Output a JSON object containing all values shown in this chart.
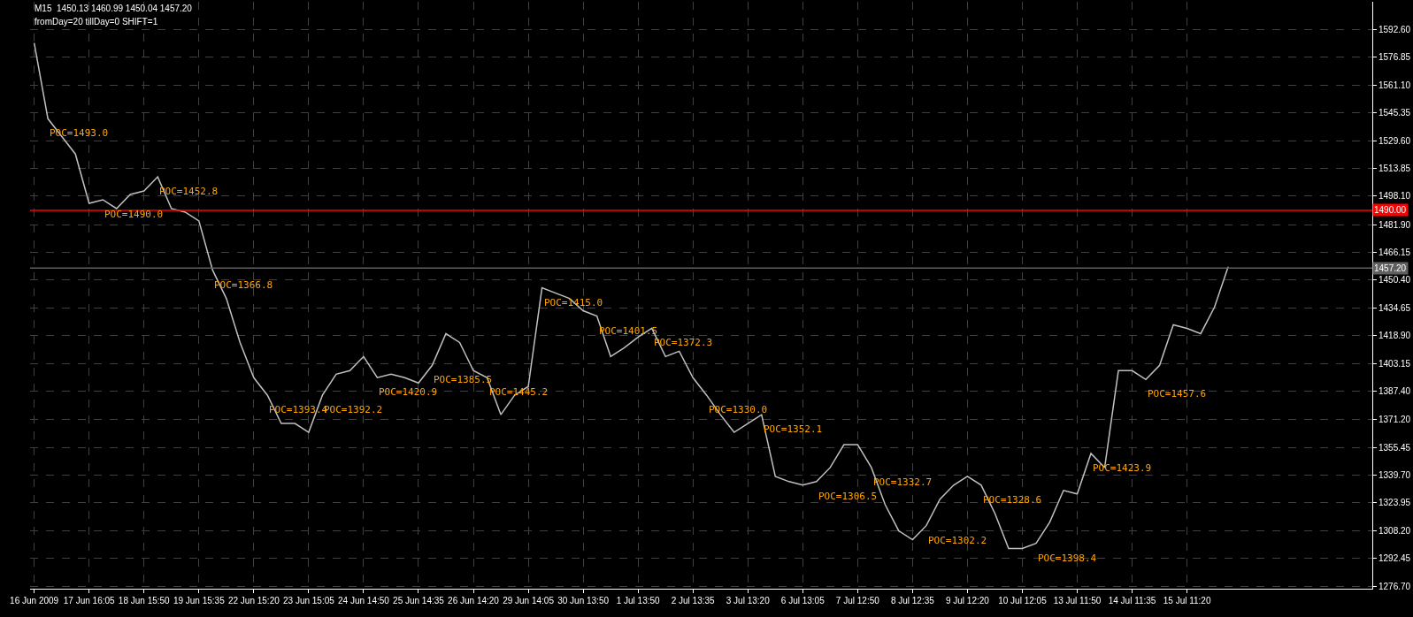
{
  "chart_data": {
    "type": "line",
    "title": "M15  1450.13 1460.99 1450.04 1457.20",
    "subtitle": "fromDay=20 tillDay=0 SHIFT=1",
    "categories": [
      "16 Jun 2009",
      null,
      null,
      null,
      "17 Jun 16:05",
      null,
      null,
      null,
      "18 Jun 15:50",
      null,
      null,
      null,
      "19 Jun 15:35",
      null,
      null,
      null,
      "22 Jun 15:20",
      null,
      null,
      null,
      "23 Jun 15:05",
      null,
      null,
      null,
      "24 Jun 14:50",
      null,
      null,
      null,
      "25 Jun 14:35",
      null,
      null,
      null,
      "26 Jun 14:20",
      null,
      null,
      null,
      "29 Jun 14:05",
      null,
      null,
      null,
      "30 Jun 13:50",
      null,
      null,
      null,
      "1 Jul 13:50",
      null,
      null,
      null,
      "2 Jul 13:35",
      null,
      null,
      null,
      "3 Jul 13:20",
      null,
      null,
      null,
      "6 Jul 13:05",
      null,
      null,
      null,
      "7 Jul 12:50",
      null,
      null,
      null,
      "8 Jul 12:35",
      null,
      null,
      null,
      "9 Jul 12:20",
      null,
      null,
      null,
      "10 Jul 12:05",
      null,
      null,
      null,
      "13 Jul 11:50",
      null,
      null,
      null,
      "14 Jul 11:35",
      null,
      null,
      null,
      "15 Jul 11:20",
      null,
      null,
      null,
      null,
      null,
      null,
      null,
      null,
      null,
      null,
      null,
      null,
      null
    ],
    "series": [
      {
        "color": "#c0c0c0",
        "values": [
          1585,
          1542,
          1532,
          1522,
          1494,
          1496,
          1491,
          1499,
          1501,
          1509,
          1491,
          1489,
          1484,
          1456,
          1440,
          1415,
          1395,
          1385,
          1369,
          1369,
          1364,
          1385,
          1397,
          1399,
          1407,
          1395,
          1397,
          1395,
          1392,
          1402,
          1420,
          1415,
          1399,
          1395,
          1374,
          1385,
          1390,
          1446,
          1443,
          1440,
          1433,
          1430,
          1407,
          1412,
          1418,
          1423,
          1407,
          1410,
          1395,
          1385,
          1374,
          1364,
          1369,
          1374,
          1339,
          1336,
          1334,
          1336,
          1344,
          1357,
          1357,
          1344,
          1323,
          1308,
          1303,
          1311,
          1326,
          1334,
          1339,
          1334,
          1318,
          1298,
          1298,
          1301,
          1313,
          1331,
          1329,
          1352,
          1344,
          1399,
          1399,
          1394,
          1402,
          1425,
          1423,
          1420,
          1435,
          1458,
          null,
          null,
          null,
          null,
          null,
          null,
          null,
          null,
          null,
          null
        ]
      }
    ],
    "ylim": [
      1275.2,
      1608.4
    ],
    "yticks": [
      {
        "value": 1276.7,
        "label": "1276.70"
      },
      {
        "value": 1292.45,
        "label": "1292.45"
      },
      {
        "value": 1308.2,
        "label": "1308.20"
      },
      {
        "value": 1323.95,
        "label": "1323.95"
      },
      {
        "value": 1339.7,
        "label": "1339.70"
      },
      {
        "value": 1355.45,
        "label": "1355.45"
      },
      {
        "value": 1371.2,
        "label": "1371.20"
      },
      {
        "value": 1387.4,
        "label": "1387.40"
      },
      {
        "value": 1403.15,
        "label": "1403.15"
      },
      {
        "value": 1418.9,
        "label": "1418.90"
      },
      {
        "value": 1434.65,
        "label": "1434.65"
      },
      {
        "value": 1450.4,
        "label": "1450.40"
      },
      {
        "value": 1466.15,
        "label": "1466.15"
      },
      {
        "value": 1481.9,
        "label": "1481.90"
      },
      {
        "value": 1498.1,
        "label": "1498.10"
      },
      {
        "value": 1513.85,
        "label": "1513.85"
      },
      {
        "value": 1529.6,
        "label": "1529.60"
      },
      {
        "value": 1545.35,
        "label": "1545.35"
      },
      {
        "value": 1561.1,
        "label": "1561.10"
      },
      {
        "value": 1576.85,
        "label": "1576.85"
      },
      {
        "value": 1592.6,
        "label": "1592.60"
      }
    ],
    "grid": true,
    "line_style": "solid",
    "marker": "none",
    "ref_lines": [
      {
        "axis": "y",
        "value": 1490.0,
        "label": "1490.00",
        "color": "#ff0000"
      },
      {
        "axis": "y",
        "value": 1457.2,
        "label": "1457.20",
        "color": "#606060"
      }
    ],
    "annotations": [
      "POC=1493.0",
      "POC=1490.0",
      "POC=1452.8",
      "POC=1366.8",
      "POC=1393.4",
      "POC=1392.2",
      "POC=1420.9",
      "POC=1385.5",
      "POC=1445.2",
      "POC=1415.0",
      "POC=1401.5",
      "POC=1372.3",
      "POC=1330.0",
      "POC=1352.1",
      "POC=1306.5",
      "POC=1332.7",
      "POC=1302.2",
      "POC=1328.6",
      "POC=1398.4",
      "POC=1423.9",
      "POC=1457.6"
    ]
  }
}
